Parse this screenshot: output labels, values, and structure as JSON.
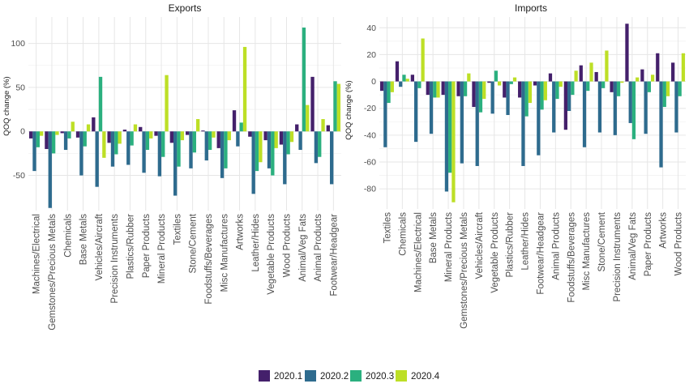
{
  "colors": {
    "grid_major": "#e6e6e6",
    "grid_minor": "#f2f2f2",
    "series": [
      "#44206b",
      "#2e6b8e",
      "#2bb07f",
      "#bddf26"
    ]
  },
  "chart_data": [
    {
      "type": "bar",
      "title": "Exports",
      "xlabel": "",
      "ylabel": "QOQ change (%)",
      "ylim": [
        -90,
        130
      ],
      "yticks": [
        -50,
        0,
        50,
        100
      ],
      "grid": true,
      "legend": "bottom",
      "categories": [
        "Machines/Electrical",
        "Gemstones/Precious Metals",
        "Chemicals",
        "Base Metals",
        "Vehicles/Aircraft",
        "Precision Instruments",
        "Plastics/Rubber",
        "Paper Products",
        "Mineral Products",
        "Textiles",
        "Stone/Cement",
        "Foodstuffs/Beverages",
        "Misc Manufactures",
        "Artworks",
        "Leather/Hides",
        "Vegetable Products",
        "Wood Products",
        "Animal/Veg Fats",
        "Animal Products",
        "Footwear/Headgear"
      ],
      "series": [
        {
          "name": "2020.1",
          "values": [
            -8,
            -20,
            -2,
            -7,
            16,
            -13,
            2,
            5,
            -5,
            -13,
            -4,
            1,
            -19,
            24,
            -6,
            -10,
            -15,
            8,
            62,
            7
          ]
        },
        {
          "name": "2020.2",
          "values": [
            -45,
            -87,
            -21,
            -50,
            -63,
            -40,
            -38,
            -47,
            -51,
            -73,
            -42,
            -33,
            -53,
            -17,
            -71,
            -42,
            -60,
            -21,
            -36,
            -60
          ]
        },
        {
          "name": "2020.3",
          "values": [
            -18,
            -25,
            -8,
            -17,
            62,
            -26,
            -16,
            -21,
            -29,
            -40,
            -24,
            -21,
            -42,
            10,
            -45,
            -50,
            -26,
            118,
            -29,
            57
          ]
        },
        {
          "name": "2020.4",
          "values": [
            -5,
            -4,
            11,
            8,
            -30,
            -14,
            8,
            -8,
            64,
            -10,
            14,
            -7,
            -10,
            96,
            -35,
            -19,
            -12,
            30,
            14,
            54
          ]
        }
      ]
    },
    {
      "type": "bar",
      "title": "Imports",
      "xlabel": "",
      "ylabel": "QOQ change (%)",
      "ylim": [
        -95,
        48
      ],
      "yticks": [
        -80,
        -60,
        -40,
        -20,
        0,
        20,
        40
      ],
      "grid": true,
      "legend": "bottom",
      "categories": [
        "Textiles",
        "Chemicals",
        "Machines/Electrical",
        "Base Metals",
        "Mineral Products",
        "Gemstones/Precious Metals",
        "Vehicles/Aircraft",
        "Vegetable Products",
        "Plastics/Rubber",
        "Leather/Hides",
        "Footwear/Headgear",
        "Animal Products",
        "Foodstuffs/Beverages",
        "Misc Manufactures",
        "Stone/Cement",
        "Precision Instruments",
        "Animal/Veg Fats",
        "Paper Products",
        "Artworks",
        "Wood Products"
      ],
      "series": [
        {
          "name": "2020.1",
          "values": [
            -7,
            15,
            5,
            -10,
            -10,
            -11,
            -19,
            -1,
            -12,
            -12,
            -3,
            6,
            -36,
            12,
            7,
            -8,
            43,
            9,
            21,
            14
          ]
        },
        {
          "name": "2020.2",
          "values": [
            -49,
            -4,
            -45,
            -39,
            -82,
            -61,
            -63,
            -24,
            -25,
            -63,
            -55,
            -38,
            -22,
            -49,
            -38,
            -40,
            -31,
            -39,
            -64,
            -38
          ]
        },
        {
          "name": "2020.3",
          "values": [
            -16,
            5,
            -5,
            -12,
            -68,
            -11,
            -23,
            8,
            -2,
            -26,
            -21,
            -13,
            -10,
            -7,
            -5,
            -11,
            -43,
            -8,
            -19,
            -11
          ]
        },
        {
          "name": "2020.4",
          "values": [
            -8,
            2,
            32,
            -12,
            -90,
            6,
            -13,
            -3,
            3,
            -16,
            -14,
            -4,
            8,
            14,
            23,
            -1,
            3,
            5,
            -11,
            21
          ]
        }
      ]
    }
  ],
  "legend": {
    "items": [
      {
        "label": "2020.1"
      },
      {
        "label": "2020.2"
      },
      {
        "label": "2020.3"
      },
      {
        "label": "2020.4"
      }
    ]
  }
}
